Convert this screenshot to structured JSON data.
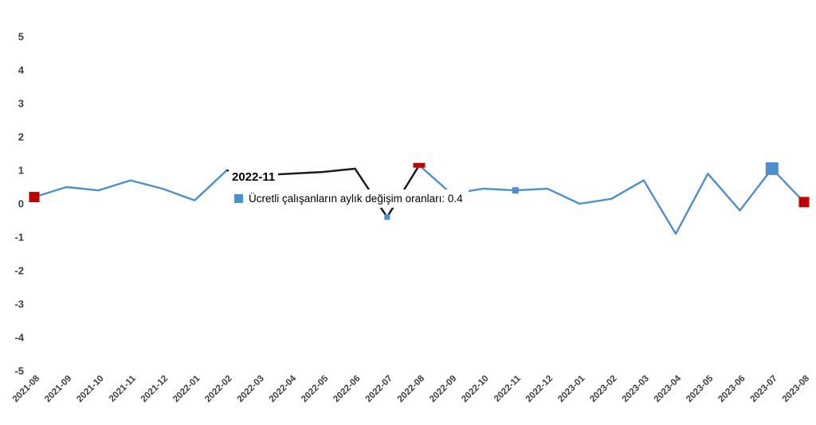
{
  "chart_data": {
    "type": "line",
    "title": "",
    "xlabel": "",
    "ylabel": "",
    "ylim": [
      -5,
      5
    ],
    "yticks": [
      5,
      4,
      3,
      2,
      1,
      0,
      -1,
      -2,
      -3,
      -4,
      -5
    ],
    "grid": false,
    "legend_position": "tooltip",
    "categories": [
      "2021-08",
      "2021-09",
      "2021-10",
      "2021-11",
      "2021-12",
      "2022-01",
      "2022-02",
      "2022-03",
      "2022-04",
      "2022-05",
      "2022-06",
      "2022-07",
      "2022-08",
      "2022-09",
      "2022-10",
      "2022-11",
      "2022-12",
      "2023-01",
      "2023-02",
      "2023-03",
      "2023-04",
      "2023-05",
      "2023-06",
      "2023-07",
      "2023-08"
    ],
    "series": [
      {
        "name": "Ücretli çalışanların aylık değişim oranları",
        "color": "#4d8fcc",
        "values": [
          0.2,
          0.5,
          0.4,
          0.7,
          0.45,
          0.1,
          1.0,
          0.85,
          0.9,
          0.95,
          1.05,
          -0.4,
          1.15,
          0.3,
          0.45,
          0.4,
          0.45,
          0.0,
          0.15,
          0.7,
          -0.9,
          0.9,
          -0.2,
          1.05,
          0.05
        ]
      }
    ],
    "highlight_segment": {
      "from": 6,
      "to": 12,
      "color": "#1a1a1a"
    },
    "markers": [
      {
        "index": 0,
        "category": "2021-08",
        "shape": "square",
        "color": "#c00000",
        "size": 13
      },
      {
        "index": 11,
        "category": "2022-07",
        "shape": "square",
        "color": "#4d8fcc",
        "size": 7
      },
      {
        "index": 12,
        "category": "2022-08",
        "shape": "dash",
        "color": "#c00000",
        "size": 15
      },
      {
        "index": 15,
        "category": "2022-11",
        "shape": "square",
        "color": "#4d8fcc",
        "size": 8
      },
      {
        "index": 23,
        "category": "2023-07",
        "shape": "square",
        "color": "#4d8fcc",
        "size": 16
      },
      {
        "index": 24,
        "category": "2023-08",
        "shape": "square",
        "color": "#c00000",
        "size": 13
      }
    ]
  },
  "tooltip": {
    "title": "2022-11",
    "text": "Ücretli çalışanların aylık değişim oranları: 0.4",
    "marker_color": "#4d8fcc",
    "selected_value": "0.4"
  },
  "colors": {
    "background": "#ffffff",
    "axis_text": "#3f3f3f",
    "line": "#4d8fcc",
    "marker_red": "#c00000",
    "highlight_line": "#1a1a1a"
  }
}
